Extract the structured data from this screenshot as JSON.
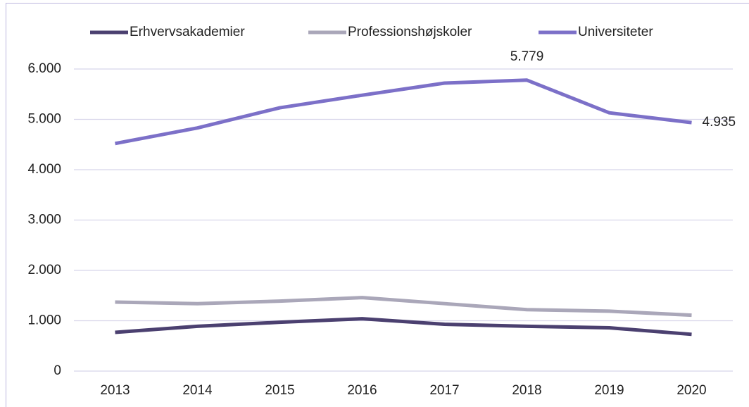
{
  "chart_data": {
    "type": "line",
    "x": [
      "2013",
      "2014",
      "2015",
      "2016",
      "2017",
      "2018",
      "2019",
      "2020"
    ],
    "series": [
      {
        "name": "Erhvervsakademier",
        "color": "#4b4070",
        "values": [
          770,
          890,
          970,
          1040,
          930,
          890,
          860,
          730
        ]
      },
      {
        "name": "Professionshøjskoler",
        "color": "#aaa7b9",
        "values": [
          1370,
          1340,
          1390,
          1460,
          1340,
          1220,
          1190,
          1110
        ]
      },
      {
        "name": "Universiteter",
        "color": "#7c70c8",
        "values": [
          4520,
          4830,
          5230,
          5480,
          5720,
          5779,
          5130,
          4935
        ],
        "value_labels": [
          null,
          null,
          null,
          null,
          null,
          "5.779",
          null,
          "4.935"
        ]
      }
    ],
    "ylim": [
      0,
      6000
    ],
    "yticks": [
      0,
      {
        "value": 1000,
        "label": "1.000"
      },
      {
        "value": 2000,
        "label": "2.000"
      },
      {
        "value": 3000,
        "label": "3.000"
      },
      {
        "value": 4000,
        "label": "4.000"
      },
      {
        "value": 5000,
        "label": "5.000"
      },
      {
        "value": 6000,
        "label": "6.000"
      }
    ],
    "grid": true,
    "legend": "top"
  }
}
